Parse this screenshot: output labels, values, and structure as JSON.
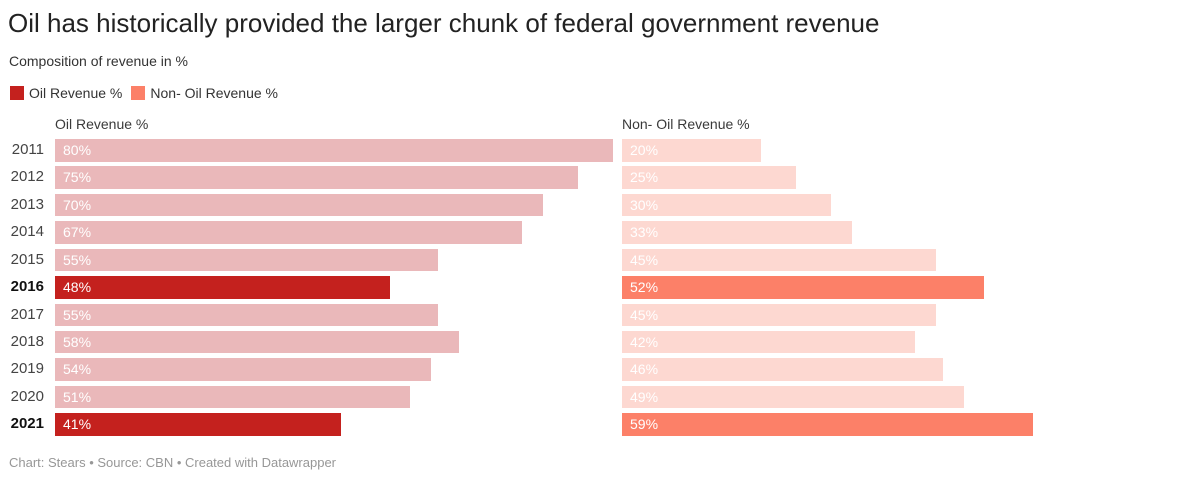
{
  "title": "Oil has historically provided the larger chunk of federal government revenue",
  "subtitle": "Composition of revenue in %",
  "legend": [
    {
      "label": "Oil Revenue %",
      "color": "#c4211e"
    },
    {
      "label": "Non- Oil Revenue %",
      "color": "#fc8068"
    }
  ],
  "columns": {
    "oil_header": "Oil Revenue %",
    "nonoil_header": "Non- Oil Revenue %"
  },
  "colors": {
    "oil_highlight": "#c4211e",
    "oil_muted": "#eab8ba",
    "nonoil_highlight": "#fc8068",
    "nonoil_muted": "#fdd8d1",
    "value_label": "#ffffff"
  },
  "footer": "Chart: Stears • Source: CBN • Created with Datawrapper",
  "chart_data": {
    "type": "bar",
    "layout": "split-bars-horizontal",
    "title": "Oil has historically provided the larger chunk of federal government revenue",
    "subtitle": "Composition of revenue in %",
    "unit": "%",
    "categories": [
      "2011",
      "2012",
      "2013",
      "2014",
      "2015",
      "2016",
      "2017",
      "2018",
      "2019",
      "2020",
      "2021"
    ],
    "series": [
      {
        "name": "Oil Revenue %",
        "values": [
          80,
          75,
          70,
          67,
          55,
          48,
          55,
          58,
          54,
          51,
          41
        ]
      },
      {
        "name": "Non- Oil Revenue %",
        "values": [
          20,
          25,
          30,
          33,
          45,
          52,
          45,
          42,
          46,
          49,
          59
        ]
      }
    ],
    "highlighted_categories": [
      "2016",
      "2021"
    ],
    "value_range": [
      0,
      80
    ],
    "legend_position": "top-left",
    "grid": false
  }
}
